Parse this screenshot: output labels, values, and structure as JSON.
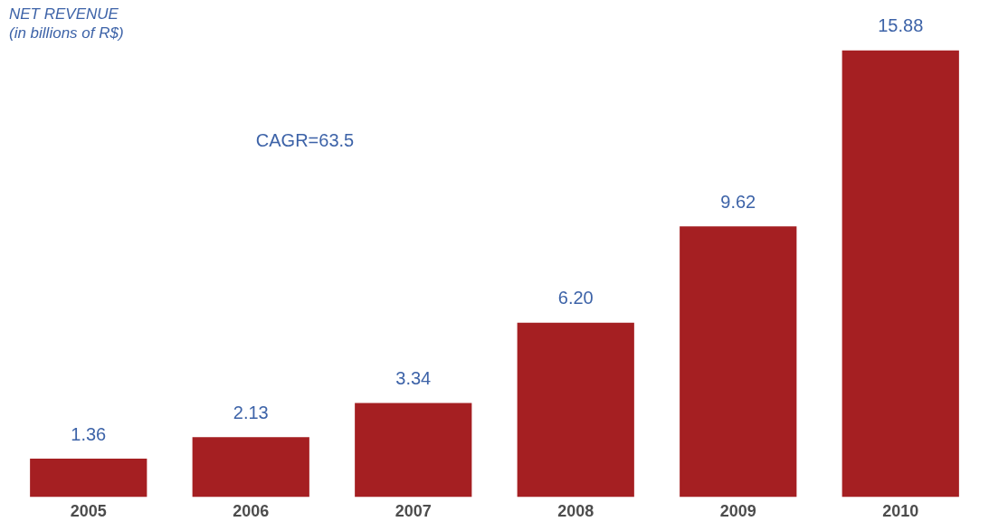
{
  "chart_data": {
    "type": "bar",
    "title": "NET REVENUE",
    "subtitle": "(in billions of R$)",
    "annotation": "CAGR=63.5",
    "categories": [
      "2005",
      "2006",
      "2007",
      "2008",
      "2009",
      "2010"
    ],
    "values": [
      1.36,
      2.13,
      3.34,
      6.2,
      9.62,
      15.88
    ],
    "value_labels": [
      "1.36",
      "2.13",
      "3.34",
      "6.20",
      "9.62",
      "15.88"
    ],
    "color": "#a51f22",
    "ylim": [
      0,
      16
    ],
    "grid": false,
    "data_labels": true,
    "tick_labels": "x"
  }
}
